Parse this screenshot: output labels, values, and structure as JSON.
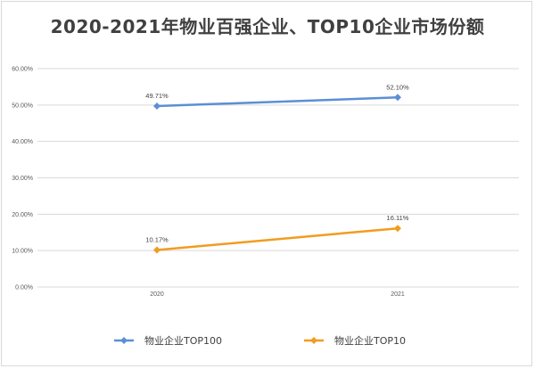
{
  "chart_data": {
    "type": "line",
    "title": "2020-2021年物业百强企业、TOP10企业市场份额",
    "xlabel": "",
    "ylabel": "",
    "categories": [
      "2020",
      "2021"
    ],
    "ylim": [
      0,
      60
    ],
    "yticks": [
      "0.00%",
      "10.00%",
      "20.00%",
      "30.00%",
      "40.00%",
      "50.00%",
      "60.00%"
    ],
    "grid": true,
    "legend_position": "bottom",
    "series": [
      {
        "name": "物业企业TOP100",
        "values": [
          49.71,
          52.1
        ],
        "labels": [
          "49.71%",
          "52.10%"
        ],
        "color": "#5b8fd6"
      },
      {
        "name": "物业企业TOP10",
        "values": [
          10.17,
          16.11
        ],
        "labels": [
          "10.17%",
          "16.11%"
        ],
        "color": "#f29c1f"
      }
    ]
  }
}
